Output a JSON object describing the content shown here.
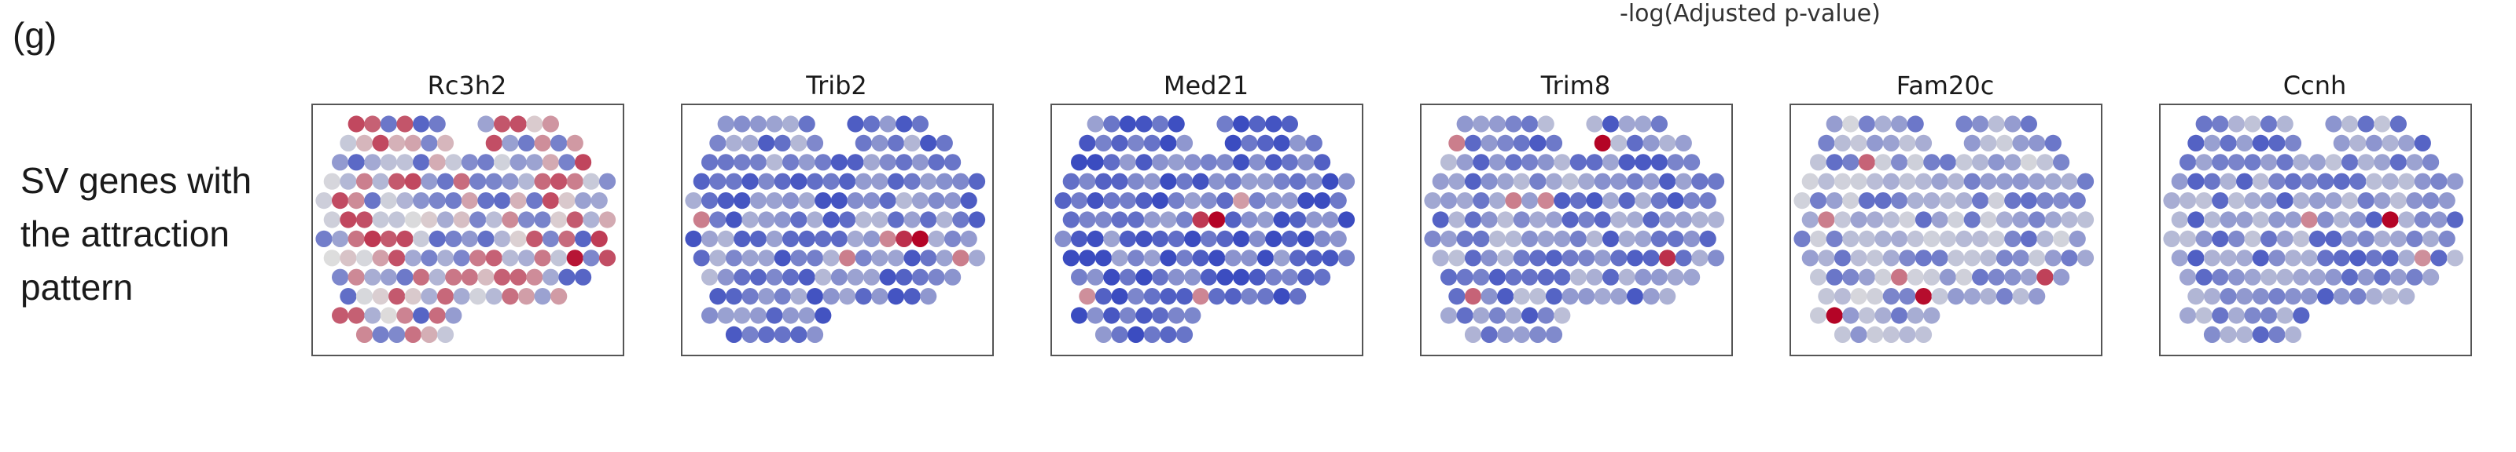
{
  "figure": {
    "panel_label": "(g)",
    "top_caption": "-log(Adjusted p-value)",
    "row_label_lines": [
      "SV genes with",
      "the attraction",
      "pattern"
    ]
  },
  "colors": {
    "colormap": "coolwarm",
    "low": "#3b4cc0",
    "mid": "#dddddd",
    "high": "#b40426"
  },
  "chart_data": [
    {
      "type": "scatter",
      "title": "Rc3h2",
      "colorbar_label": "",
      "value_range": [
        0,
        1
      ],
      "base_level": 0.46,
      "tint": "mixed",
      "hotspots": [
        {
          "col": 9,
          "row": 10,
          "value": 0.99
        },
        {
          "col": 8,
          "row": 11,
          "value": 0.95
        },
        {
          "col": 15,
          "row": 7,
          "value": 0.96
        },
        {
          "col": 3,
          "row": 6,
          "value": 0.88
        },
        {
          "col": 16,
          "row": 2,
          "value": 0.85
        },
        {
          "col": 14,
          "row": 3,
          "value": 0.82
        }
      ]
    },
    {
      "type": "scatter",
      "title": "Trib2",
      "colorbar_label": "",
      "value_range": [
        0,
        1
      ],
      "base_level": 0.2,
      "tint": "cool",
      "hotspots": [
        {
          "col": 14,
          "row": 6,
          "value": 1.0
        },
        {
          "col": 13,
          "row": 6,
          "value": 0.9
        },
        {
          "col": 12,
          "row": 6,
          "value": 0.7
        },
        {
          "col": 9,
          "row": 7,
          "value": 0.72
        },
        {
          "col": 16,
          "row": 7,
          "value": 0.72
        },
        {
          "col": 0,
          "row": 5,
          "value": 0.72
        }
      ]
    },
    {
      "type": "scatter",
      "title": "Med21",
      "colorbar_label": "",
      "value_range": [
        0,
        1
      ],
      "base_level": 0.13,
      "tint": "cool",
      "hotspots": [
        {
          "col": 9,
          "row": 5,
          "value": 1.0
        },
        {
          "col": 8,
          "row": 5,
          "value": 0.88
        },
        {
          "col": 8,
          "row": 9,
          "value": 0.7
        },
        {
          "col": 1,
          "row": 9,
          "value": 0.68
        },
        {
          "col": 11,
          "row": 4,
          "value": 0.65
        }
      ]
    },
    {
      "type": "scatter",
      "title": "Trim8",
      "colorbar_label": "",
      "value_range": [
        0,
        1
      ],
      "base_level": 0.22,
      "tint": "cool",
      "hotspots": [
        {
          "col": 10,
          "row": 1,
          "value": 1.0
        },
        {
          "col": 14,
          "row": 7,
          "value": 0.9
        },
        {
          "col": 2,
          "row": 9,
          "value": 0.78
        },
        {
          "col": 1,
          "row": 1,
          "value": 0.72
        },
        {
          "col": 5,
          "row": 4,
          "value": 0.72
        },
        {
          "col": 7,
          "row": 4,
          "value": 0.7
        }
      ]
    },
    {
      "type": "scatter",
      "title": "Fam20c",
      "colorbar_label": "",
      "value_range": [
        0,
        1
      ],
      "base_level": 0.3,
      "tint": "cool",
      "hotspots": [
        {
          "col": 2,
          "row": 10,
          "value": 1.0
        },
        {
          "col": 7,
          "row": 9,
          "value": 0.98
        },
        {
          "col": 15,
          "row": 8,
          "value": 0.86
        },
        {
          "col": 4,
          "row": 2,
          "value": 0.78
        },
        {
          "col": 1,
          "row": 5,
          "value": 0.72
        },
        {
          "col": 6,
          "row": 8,
          "value": 0.74
        }
      ]
    },
    {
      "type": "scatter",
      "title": "Ccnh",
      "colorbar_label": "",
      "value_range": [
        0,
        1
      ],
      "base_level": 0.24,
      "tint": "cool",
      "hotspots": [
        {
          "col": 13,
          "row": 5,
          "value": 1.0
        },
        {
          "col": 8,
          "row": 5,
          "value": 0.7
        },
        {
          "col": 15,
          "row": 7,
          "value": 0.68
        }
      ]
    }
  ]
}
